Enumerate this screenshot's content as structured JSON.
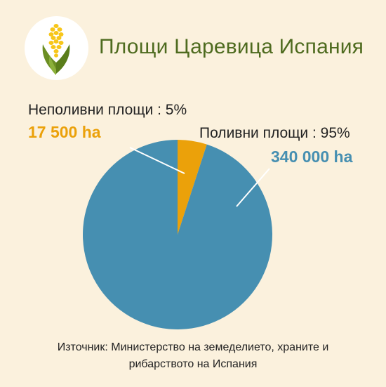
{
  "header": {
    "title": "Площи Царевица Испания",
    "logo_icon": "corn-icon"
  },
  "colors": {
    "background": "#fbf1dd",
    "title": "#4e6b1f",
    "irrigated": "#468fb1",
    "non_irrigated": "#eba10a"
  },
  "chart_data": {
    "type": "pie",
    "slices": [
      {
        "label": "Неполивни площи  : 5%",
        "percent": 5,
        "amount": "17 500 ha",
        "color": "#eba10a"
      },
      {
        "label": "Поливни площи : 95%",
        "percent": 95,
        "amount": "340 000 ha",
        "color": "#468fb1"
      }
    ]
  },
  "source": {
    "line1": "Източник: Министерство на земеделието, храните и",
    "line2": "рибарството на Испания"
  }
}
